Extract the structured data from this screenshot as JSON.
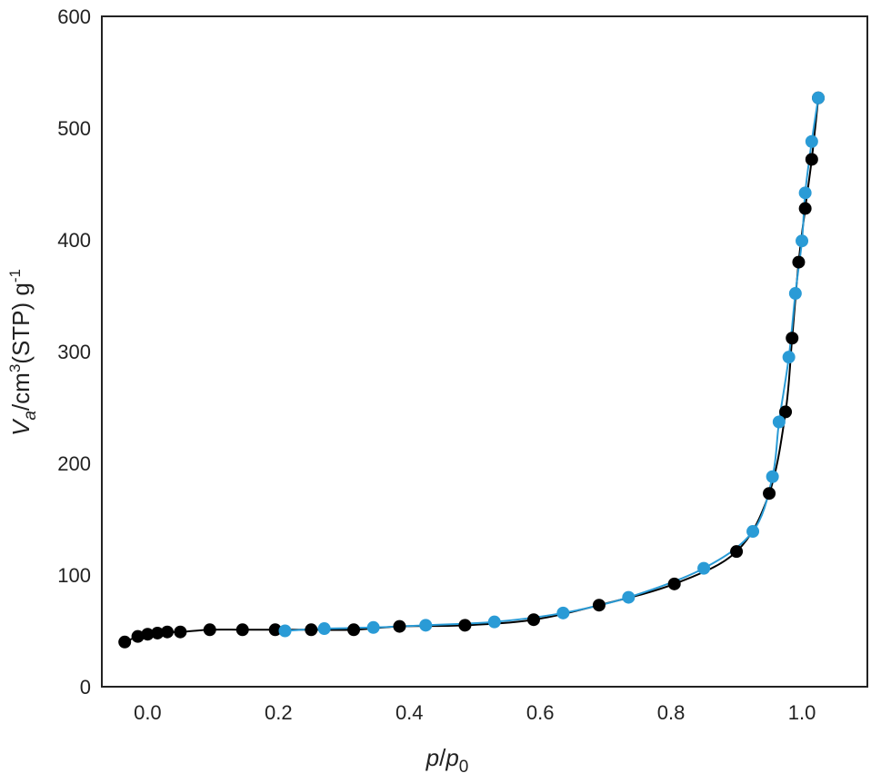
{
  "chart_data": {
    "type": "scatter",
    "title": "",
    "xlabel": "p/p0",
    "ylabel": "Va/cm3(STP) g-1",
    "xlabel_parts": {
      "p": "p",
      "slash": "/",
      "p0_base": "p",
      "p0_sub": "0"
    },
    "ylabel_parts": {
      "v": "V",
      "v_sub": "a",
      "unit_a": "/cm",
      "unit_sup": "3",
      "unit_b": "(STP) g",
      "unit_sup2": "-1"
    },
    "xlim": [
      -0.07,
      1.1
    ],
    "ylim": [
      0,
      600
    ],
    "xticks": [
      0.0,
      0.2,
      0.4,
      0.6,
      0.8,
      1.0
    ],
    "xtick_labels": [
      "0.0",
      "0.2",
      "0.4",
      "0.6",
      "0.8",
      "1.0"
    ],
    "yticks": [
      0,
      100,
      200,
      300,
      400,
      500,
      600
    ],
    "ytick_labels": [
      "0",
      "100",
      "200",
      "300",
      "400",
      "500",
      "600"
    ],
    "grid": false,
    "legend": "none",
    "series": [
      {
        "color": "#000000",
        "points": [
          [
            -0.035,
            40
          ],
          [
            -0.015,
            45
          ],
          [
            0.0,
            47
          ],
          [
            0.015,
            48
          ],
          [
            0.03,
            49
          ],
          [
            0.05,
            49
          ],
          [
            0.095,
            51
          ],
          [
            0.145,
            51
          ],
          [
            0.195,
            51
          ],
          [
            0.25,
            51
          ],
          [
            0.315,
            51
          ],
          [
            0.385,
            54
          ],
          [
            0.485,
            55
          ],
          [
            0.59,
            60
          ],
          [
            0.69,
            73
          ],
          [
            0.805,
            92
          ],
          [
            0.9,
            121
          ],
          [
            0.95,
            173
          ],
          [
            0.975,
            246
          ],
          [
            0.985,
            312
          ],
          [
            0.995,
            380
          ],
          [
            1.005,
            428
          ],
          [
            1.015,
            472
          ],
          [
            1.025,
            527
          ]
        ]
      },
      {
        "color": "#2a9bd6",
        "points": [
          [
            0.21,
            50
          ],
          [
            0.27,
            52
          ],
          [
            0.345,
            53
          ],
          [
            0.425,
            55
          ],
          [
            0.53,
            58
          ],
          [
            0.635,
            66
          ],
          [
            0.735,
            80
          ],
          [
            0.85,
            106
          ],
          [
            0.925,
            139
          ],
          [
            0.955,
            188
          ],
          [
            0.965,
            237
          ],
          [
            0.98,
            295
          ],
          [
            0.99,
            352
          ],
          [
            1.0,
            399
          ],
          [
            1.005,
            442
          ],
          [
            1.015,
            488
          ],
          [
            1.025,
            527
          ]
        ]
      }
    ]
  }
}
